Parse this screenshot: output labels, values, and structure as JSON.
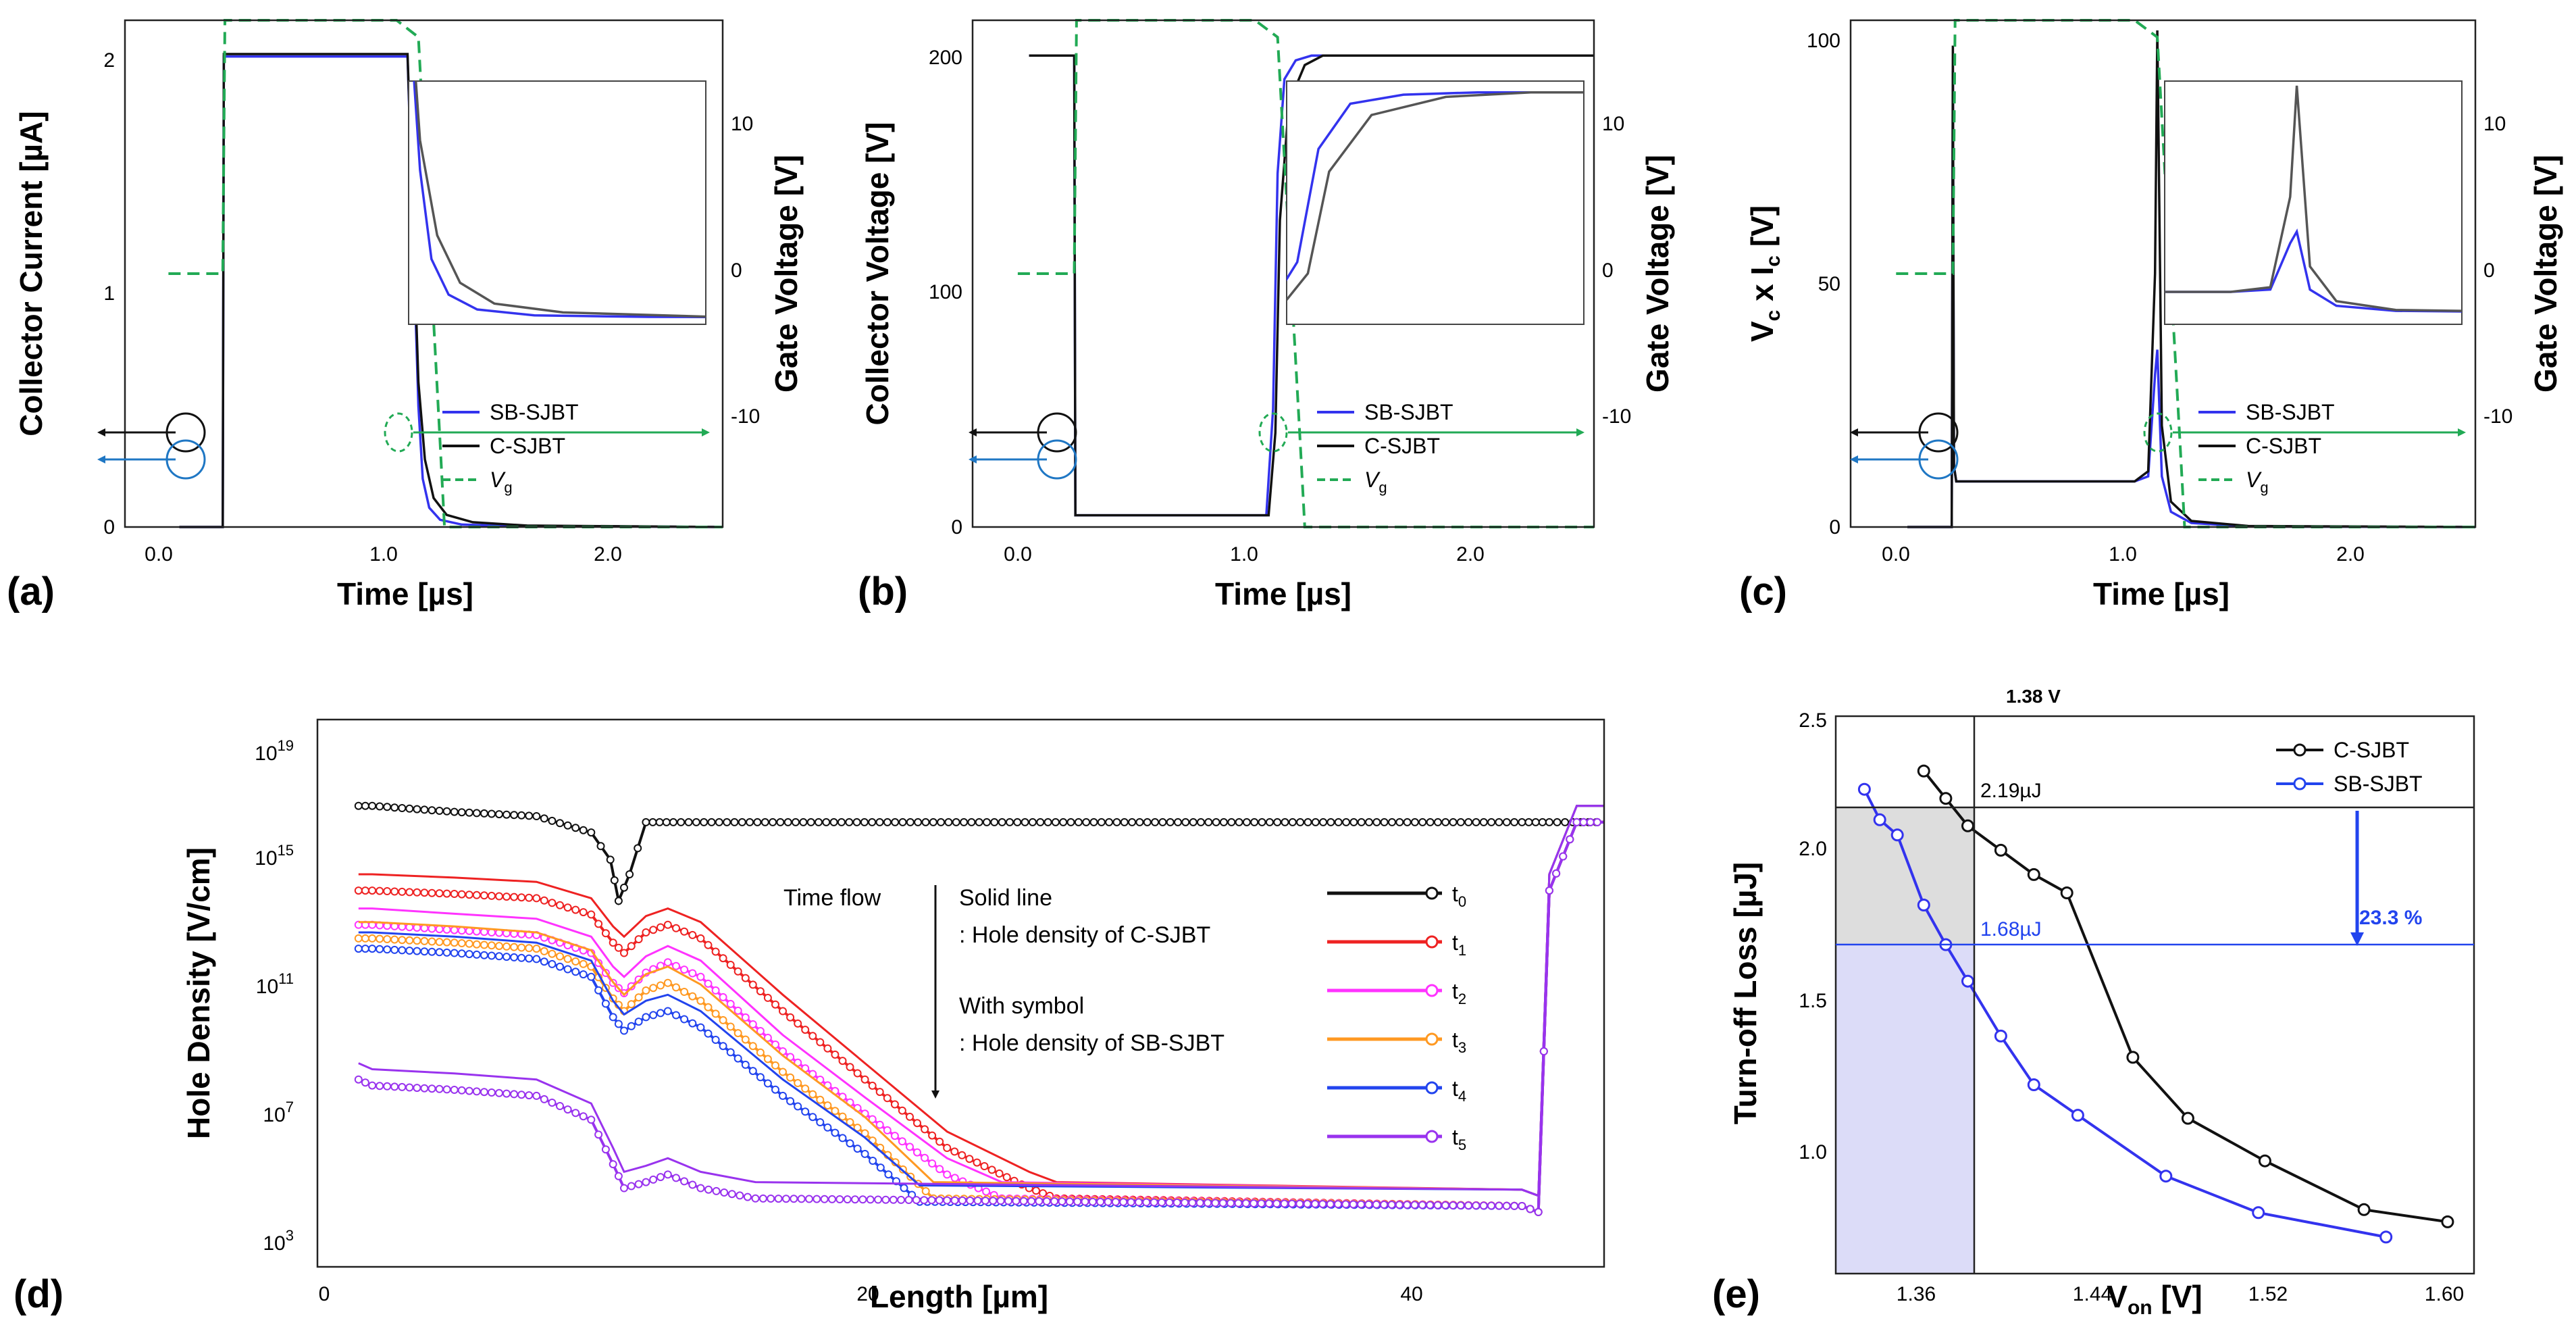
{
  "colors": {
    "sb": "#3333ee",
    "c": "#111111",
    "vg": "#22aa55",
    "t0": "#111111",
    "t1": "#ee2222",
    "t2": "#ff33ff",
    "t3": "#ff9922",
    "t4": "#2244ee",
    "t5": "#9933ee"
  },
  "chart_data": [
    {
      "id": "a",
      "type": "line",
      "panel_label": "(a)",
      "xlabel": "Time [µs]",
      "ylabel": "Collector Current [µA]",
      "y2label": "Gate Voltage [V]",
      "xlim": [
        -0.25,
        2.5
      ],
      "ylim": [
        0,
        2.1
      ],
      "y2lim": [
        -15,
        15
      ],
      "xticks": [
        "0.0",
        "1.0",
        "2.0"
      ],
      "yticks": [
        "0",
        "1",
        "2"
      ],
      "y2ticks": [
        "10",
        "0",
        "-10"
      ],
      "legend": [
        "SB-SJBT",
        "C-SJBT",
        "V"
      ],
      "legend_sub": "g",
      "series": [
        {
          "name": "SB-SJBT",
          "x": [
            0.0,
            0.2,
            0.205,
            1.05,
            1.1,
            1.12,
            1.15,
            1.2,
            1.3,
            1.5,
            2.5
          ],
          "values": [
            0,
            0,
            1.95,
            1.95,
            0.5,
            0.2,
            0.08,
            0.03,
            0.01,
            0.005,
            0.0
          ]
        },
        {
          "name": "C-SJBT",
          "x": [
            0.0,
            0.2,
            0.205,
            1.05,
            1.1,
            1.13,
            1.17,
            1.23,
            1.35,
            1.6,
            2.5
          ],
          "values": [
            0,
            0,
            1.96,
            1.96,
            0.6,
            0.28,
            0.12,
            0.05,
            0.02,
            0.006,
            0.0
          ]
        },
        {
          "name": "Vg",
          "axis": "y2",
          "x": [
            -0.05,
            0.2,
            0.21,
            1.0,
            1.1,
            1.2,
            1.22,
            2.5
          ],
          "values": [
            0,
            0,
            15,
            15,
            14,
            -10,
            -15,
            -15
          ]
        }
      ]
    },
    {
      "id": "b",
      "type": "line",
      "panel_label": "(b)",
      "xlabel": "Time [µs]",
      "ylabel": "Collector Voltage [V]",
      "y2label": "Gate Voltage [V]",
      "xlim": [
        -0.25,
        2.5
      ],
      "ylim": [
        0,
        215
      ],
      "y2lim": [
        -15,
        15
      ],
      "xticks": [
        "0.0",
        "1.0",
        "2.0"
      ],
      "yticks": [
        "0",
        "100",
        "200"
      ],
      "y2ticks": [
        "10",
        "0",
        "-10"
      ],
      "legend": [
        "SB-SJBT",
        "C-SJBT",
        "V"
      ],
      "legend_sub": "g",
      "series": [
        {
          "name": "SB-SJBT",
          "x": [
            0.0,
            0.2,
            0.205,
            1.05,
            1.08,
            1.1,
            1.13,
            1.18,
            1.25,
            2.5
          ],
          "values": [
            200,
            200,
            5,
            5,
            50,
            150,
            190,
            198,
            200,
            200
          ]
        },
        {
          "name": "C-SJBT",
          "x": [
            0.0,
            0.2,
            0.205,
            1.06,
            1.09,
            1.11,
            1.15,
            1.22,
            1.3,
            2.5
          ],
          "values": [
            200,
            200,
            5,
            5,
            40,
            130,
            180,
            196,
            200,
            200
          ]
        },
        {
          "name": "Vg",
          "axis": "y2",
          "x": [
            -0.05,
            0.2,
            0.21,
            1.0,
            1.1,
            1.2,
            1.22,
            2.5
          ],
          "values": [
            0,
            0,
            15,
            15,
            14,
            -10,
            -15,
            -15
          ]
        }
      ]
    },
    {
      "id": "c",
      "type": "line",
      "panel_label": "(c)",
      "xlabel": "Time [µs]",
      "ylabel": "V",
      "ylabel_sub1": "c",
      "ylabel_mid": " x I",
      "ylabel_sub2": "c",
      "ylabel_end": " [V]",
      "y2label": "Gate Voltage [V]",
      "xlim": [
        -0.25,
        2.5
      ],
      "ylim": [
        0,
        100
      ],
      "y2lim": [
        -15,
        15
      ],
      "xticks": [
        "0.0",
        "1.0",
        "2.0"
      ],
      "yticks": [
        "0",
        "50",
        "100"
      ],
      "y2ticks": [
        "10",
        "0",
        "-10"
      ],
      "legend": [
        "SB-SJBT",
        "C-SJBT",
        "V"
      ],
      "legend_sub": "g",
      "series": [
        {
          "name": "SB-SJBT",
          "x": [
            0.0,
            0.195,
            0.2,
            0.205,
            0.215,
            0.25,
            1.0,
            1.06,
            1.09,
            1.1,
            1.12,
            1.16,
            1.25,
            1.5,
            2.5
          ],
          "values": [
            0,
            0,
            90,
            12,
            9,
            9,
            9,
            10,
            30,
            35,
            10,
            3,
            0.8,
            0.1,
            0
          ]
        },
        {
          "name": "C-SJBT",
          "x": [
            0.0,
            0.195,
            0.2,
            0.205,
            0.215,
            0.25,
            1.0,
            1.06,
            1.09,
            1.1,
            1.12,
            1.16,
            1.25,
            1.5,
            2.5
          ],
          "values": [
            0,
            0,
            95,
            12,
            9,
            9,
            9,
            11,
            50,
            98,
            20,
            5,
            1.2,
            0.2,
            0
          ]
        },
        {
          "name": "Vg",
          "axis": "y2",
          "x": [
            -0.05,
            0.2,
            0.21,
            1.0,
            1.1,
            1.2,
            1.22,
            2.5
          ],
          "values": [
            0,
            0,
            15,
            15,
            14,
            -10,
            -15,
            -15
          ]
        }
      ]
    },
    {
      "id": "d",
      "type": "line",
      "panel_label": "(d)",
      "xlabel": "Length [µm]",
      "ylabel": "Hole Density [V/cm]",
      "yscale": "log",
      "xlim": [
        0,
        47
      ],
      "ylim": [
        1000,
        1e+19
      ],
      "xticks": [
        "0",
        "20",
        "40"
      ],
      "ytick_base": "10",
      "ytick_exps": [
        "3",
        "7",
        "11",
        "15",
        "19"
      ],
      "annotations": [
        "Time flow",
        "Solid line",
        " : Hole density of C-SJBT",
        "With symbol",
        " : Hole density of SB-SJBT"
      ],
      "legend": [
        "t",
        "t",
        "t",
        "t",
        "t",
        "t"
      ],
      "legend_subs": [
        "0",
        "1",
        "2",
        "3",
        "4",
        "5"
      ],
      "series": [
        {
          "name": "t0",
          "x": [
            1.5,
            2,
            5,
            8,
            10,
            10.7,
            11,
            11.4,
            12,
            13,
            44,
            45,
            47
          ],
          "values": [
            3e+16,
            3e+16,
            2e+16,
            1.5e+16,
            5000000000000000.0,
            800000000000000.0,
            50000000000000.0,
            300000000000000.0,
            1e+16,
            1e+16,
            1e+16,
            1e+16,
            1e+16
          ]
        },
        {
          "name": "t1",
          "x": [
            1.5,
            2,
            5,
            8,
            10,
            10.8,
            11.2,
            12,
            12.8,
            14,
            17,
            20,
            23,
            26,
            27,
            44,
            44.6,
            45,
            46,
            47
          ],
          "values": [
            100000000000000.0,
            100000000000000.0,
            80000000000000.0,
            60000000000000.0,
            20000000000000.0,
            3000000000000.0,
            1500000000000.0,
            6000000000000.0,
            10000000000000.0,
            4000000000000.0,
            30000000000.0,
            300000000.0,
            3000000.0,
            200000.0,
            100000.0,
            60000.0,
            40000.0,
            100000000000000.0,
            1e+16,
            1e+16
          ]
        },
        {
          "name": "t2",
          "x": [
            1.5,
            2,
            5,
            8,
            10,
            10.8,
            11.2,
            12,
            12.8,
            14,
            17,
            20,
            23,
            25,
            44,
            44.6,
            45,
            46,
            47
          ],
          "values": [
            10000000000000.0,
            10000000000000.0,
            7000000000000.0,
            5000000000000.0,
            1500000000000.0,
            200000000000.0,
            100000000000.0,
            400000000000.0,
            800000000000.0,
            300000000000.0,
            2000000000.0,
            30000000.0,
            500000.0,
            100000.0,
            60000.0,
            40000.0,
            100000000000000.0,
            1e+16,
            1e+16
          ]
        },
        {
          "name": "t3",
          "x": [
            1.5,
            2,
            5,
            8,
            10,
            10.8,
            11.2,
            12,
            12.8,
            14,
            17,
            20,
            22.5,
            44,
            44.6,
            45,
            46,
            47
          ],
          "values": [
            4000000000000.0,
            4000000000000.0,
            3000000000000.0,
            2000000000000.0,
            600000000000.0,
            70000000000.0,
            30000000000.0,
            120000000000.0,
            200000000000.0,
            60000000000.0,
            500000000.0,
            8000000.0,
            100000.0,
            60000.0,
            40000.0,
            100000000000000.0,
            1e+16,
            1e+16
          ]
        },
        {
          "name": "t4",
          "x": [
            1.5,
            2,
            5,
            8,
            10,
            10.8,
            11.2,
            12,
            12.8,
            14,
            17,
            20,
            22,
            44,
            44.6,
            45,
            46,
            47
          ],
          "values": [
            2000000000000.0,
            2000000000000.0,
            1500000000000.0,
            1000000000000.0,
            300000000000.0,
            20000000000.0,
            8000000000.0,
            20000000000.0,
            30000000000.0,
            10000000000.0,
            100000000.0,
            2000000.0,
            80000.0,
            60000.0,
            40000.0,
            100000000000000.0,
            1e+16,
            1e+16
          ]
        },
        {
          "name": "t5",
          "x": [
            1.5,
            2,
            5,
            8,
            10,
            10.8,
            11.2,
            12,
            12.8,
            14,
            16,
            44,
            44.6,
            45,
            46,
            47
          ],
          "values": [
            300000000.0,
            200000000.0,
            150000000.0,
            100000000.0,
            20000000.0,
            1000000.0,
            200000.0,
            300000.0,
            500000.0,
            200000.0,
            100000.0,
            60000.0,
            40000.0,
            100000000000000.0,
            1e+16,
            1e+16
          ]
        }
      ]
    },
    {
      "id": "e",
      "type": "scatter",
      "panel_label": "(e)",
      "xlabel": "V",
      "xlabel_sub": "on",
      "xlabel_end": " [V]",
      "ylabel": "Turn-off Loss [µJ]",
      "xlim": [
        1.32,
        1.61
      ],
      "ylim": [
        0.72,
        2.55
      ],
      "xticks": [
        "1.36",
        "1.44",
        "1.52",
        "1.60"
      ],
      "yticks": [
        "1.0",
        "1.5",
        "2.0",
        "2.5"
      ],
      "legend": [
        "C-SJBT",
        "SB-SJBT"
      ],
      "annotations": [
        "1.38 V",
        "2.19µJ",
        "1.68µJ",
        "23.3 %"
      ],
      "reference": {
        "von": 1.38,
        "loss_c": 2.19,
        "loss_sb": 1.68
      },
      "series": [
        {
          "name": "C-SJBT",
          "x": [
            1.36,
            1.37,
            1.38,
            1.395,
            1.41,
            1.425,
            1.455,
            1.48,
            1.515,
            1.56,
            1.598
          ],
          "values": [
            2.37,
            2.28,
            2.19,
            2.11,
            2.03,
            1.97,
            1.43,
            1.23,
            1.09,
            0.93,
            0.89
          ]
        },
        {
          "name": "SB-SJBT",
          "x": [
            1.333,
            1.34,
            1.348,
            1.36,
            1.37,
            1.38,
            1.395,
            1.41,
            1.43,
            1.47,
            1.512,
            1.57
          ],
          "values": [
            2.31,
            2.21,
            2.16,
            1.93,
            1.8,
            1.68,
            1.5,
            1.34,
            1.24,
            1.04,
            0.92,
            0.84
          ]
        }
      ]
    }
  ]
}
